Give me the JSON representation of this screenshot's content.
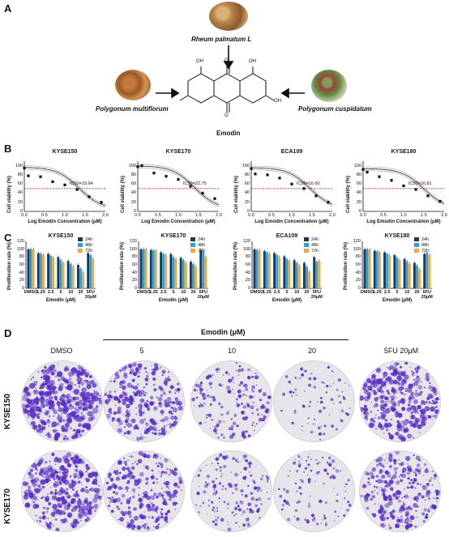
{
  "figure": {
    "panel_labels": [
      "A",
      "B",
      "C",
      "D"
    ]
  },
  "panel_a": {
    "herbs": [
      {
        "name": "Rheum palmatum L"
      },
      {
        "name": "Polygonum multiflorum"
      },
      {
        "name": "Polygonum cuspidatum"
      }
    ],
    "compound": "Emodin",
    "atom_labels": {
      "oh": "OH",
      "o": "O"
    }
  },
  "panel_b": {
    "ylabel": "Cell viability (%)",
    "xlabel": "Log Emodin Concentration (μM)",
    "y_ticks": [
      "0",
      "20",
      "40",
      "60",
      "80",
      "100"
    ],
    "x_ticks": [
      "0.0",
      "0.5",
      "1.0",
      "1.5",
      "2.0"
    ],
    "colors": {
      "curve": "#333333",
      "band": "#9a9a9a",
      "ic50_line": "#cc2222"
    }
  },
  "panel_c": {
    "ylabel": "Proliferation rate (%)",
    "xlabel": "Emodin (μM)",
    "categories": [
      "DMSO",
      "1.25",
      "2.5",
      "5",
      "10",
      "20",
      "5FU"
    ],
    "fu_sub": "20μM",
    "y_ticks": [
      "0",
      "20",
      "40",
      "60",
      "80",
      "100",
      "120"
    ],
    "legend": [
      "24h",
      "48h",
      "72h"
    ],
    "colors": {
      "24h": "#1b3a5c",
      "48h": "#2f9fd8",
      "72h": "#f2a93b"
    }
  },
  "panel_d": {
    "header": "Emodin (μM)",
    "columns": [
      "DMSO",
      "5",
      "10",
      "20",
      "5FU 20μM"
    ],
    "rows": [
      "KYSE150",
      "KYSE170"
    ],
    "density": [
      [
        0.95,
        0.62,
        0.35,
        0.12,
        0.78
      ],
      [
        0.8,
        0.55,
        0.3,
        0.18,
        0.6
      ]
    ],
    "stain_color": "#5a2ec4"
  },
  "chart_data": [
    {
      "type": "scatter",
      "title": "KYSE150",
      "xlabel": "Log Emodin Concentration (μM)",
      "ylabel": "Cell viability (%)",
      "xlim": [
        0,
        2.0
      ],
      "ylim": [
        0,
        110
      ],
      "x": [
        0.0,
        0.1,
        0.4,
        0.7,
        1.0,
        1.3,
        1.6,
        1.9
      ],
      "y": [
        95,
        78,
        76,
        65,
        58,
        48,
        32,
        20
      ],
      "ic50_label": "IC50=15.64",
      "ic50_line": 50
    },
    {
      "type": "scatter",
      "title": "KYSE170",
      "xlabel": "Log Emodin Concentration (μM)",
      "ylabel": "Cell viability (%)",
      "xlim": [
        0,
        2.0
      ],
      "ylim": [
        0,
        110
      ],
      "x": [
        0.0,
        0.1,
        0.4,
        0.7,
        1.0,
        1.3,
        1.6,
        1.9
      ],
      "y": [
        98,
        100,
        84,
        77,
        70,
        55,
        40,
        28
      ],
      "ic50_label": "IC50=22.75",
      "ic50_line": 50
    },
    {
      "type": "scatter",
      "title": "ECA109",
      "xlabel": "Log Emodin Concentration (μM)",
      "ylabel": "Cell viability (%)",
      "xlim": [
        0,
        2.0
      ],
      "ylim": [
        0,
        110
      ],
      "x": [
        0.0,
        0.1,
        0.4,
        0.7,
        1.0,
        1.3,
        1.6,
        1.9
      ],
      "y": [
        94,
        82,
        80,
        73,
        60,
        50,
        34,
        20
      ],
      "ic50_label": "IC50=16.60",
      "ic50_line": 50
    },
    {
      "type": "scatter",
      "title": "KYSE180",
      "xlabel": "Log Emodin Concentration (μM)",
      "ylabel": "Cell viability (%)",
      "xlim": [
        0,
        2.0
      ],
      "ylim": [
        0,
        110
      ],
      "x": [
        0.0,
        0.1,
        0.4,
        0.7,
        1.0,
        1.3,
        1.6,
        1.9
      ],
      "y": [
        92,
        86,
        76,
        68,
        56,
        48,
        34,
        22
      ],
      "ic50_label": "IC50=16.81",
      "ic50_line": 50
    },
    {
      "type": "bar",
      "title": "KYSE150",
      "categories": [
        "DMSO",
        "1.25",
        "2.5",
        "5",
        "10",
        "20",
        "5FU"
      ],
      "ylabel": "Proliferation rate (%)",
      "xlabel": "Emodin (μM)",
      "ylim": [
        0,
        120
      ],
      "series": [
        {
          "name": "24h",
          "values": [
            100,
            90,
            88,
            80,
            70,
            60,
            90
          ]
        },
        {
          "name": "48h",
          "values": [
            100,
            88,
            83,
            72,
            62,
            50,
            85
          ]
        },
        {
          "name": "72h",
          "values": [
            100,
            85,
            78,
            65,
            55,
            40,
            75
          ]
        }
      ]
    },
    {
      "type": "bar",
      "title": "KYSE170",
      "categories": [
        "DMSO",
        "1.25",
        "2.5",
        "5",
        "10",
        "20",
        "5FU"
      ],
      "ylabel": "Proliferation rate (%)",
      "xlabel": "Emodin (μM)",
      "ylim": [
        0,
        120
      ],
      "series": [
        {
          "name": "24h",
          "values": [
            100,
            98,
            92,
            88,
            78,
            68,
            98
          ]
        },
        {
          "name": "48h",
          "values": [
            100,
            97,
            88,
            80,
            72,
            62,
            95
          ]
        },
        {
          "name": "72h",
          "values": [
            100,
            96,
            85,
            75,
            65,
            55,
            80
          ]
        }
      ]
    },
    {
      "type": "bar",
      "title": "ECA109",
      "categories": [
        "DMSO",
        "1.25",
        "2.5",
        "5",
        "10",
        "20",
        "5FU"
      ],
      "ylabel": "Proliferation rate (%)",
      "xlabel": "Emodin (μM)",
      "ylim": [
        0,
        120
      ],
      "series": [
        {
          "name": "24h",
          "values": [
            100,
            95,
            90,
            82,
            72,
            65,
            80
          ]
        },
        {
          "name": "48h",
          "values": [
            98,
            92,
            85,
            75,
            65,
            55,
            68
          ]
        },
        {
          "name": "72h",
          "values": [
            97,
            88,
            80,
            70,
            58,
            42,
            70
          ]
        }
      ]
    },
    {
      "type": "bar",
      "title": "KYSE180",
      "categories": [
        "DMSO",
        "1.25",
        "2.5",
        "5",
        "10",
        "20",
        "5FU"
      ],
      "ylabel": "Proliferation rate (%)",
      "xlabel": "Emodin (μM)",
      "ylim": [
        0,
        120
      ],
      "series": [
        {
          "name": "24h",
          "values": [
            100,
            96,
            92,
            85,
            75,
            65,
            88
          ]
        },
        {
          "name": "48h",
          "values": [
            100,
            94,
            88,
            78,
            68,
            58,
            92
          ]
        },
        {
          "name": "72h",
          "values": [
            99,
            92,
            84,
            72,
            62,
            48,
            85
          ]
        }
      ]
    }
  ]
}
